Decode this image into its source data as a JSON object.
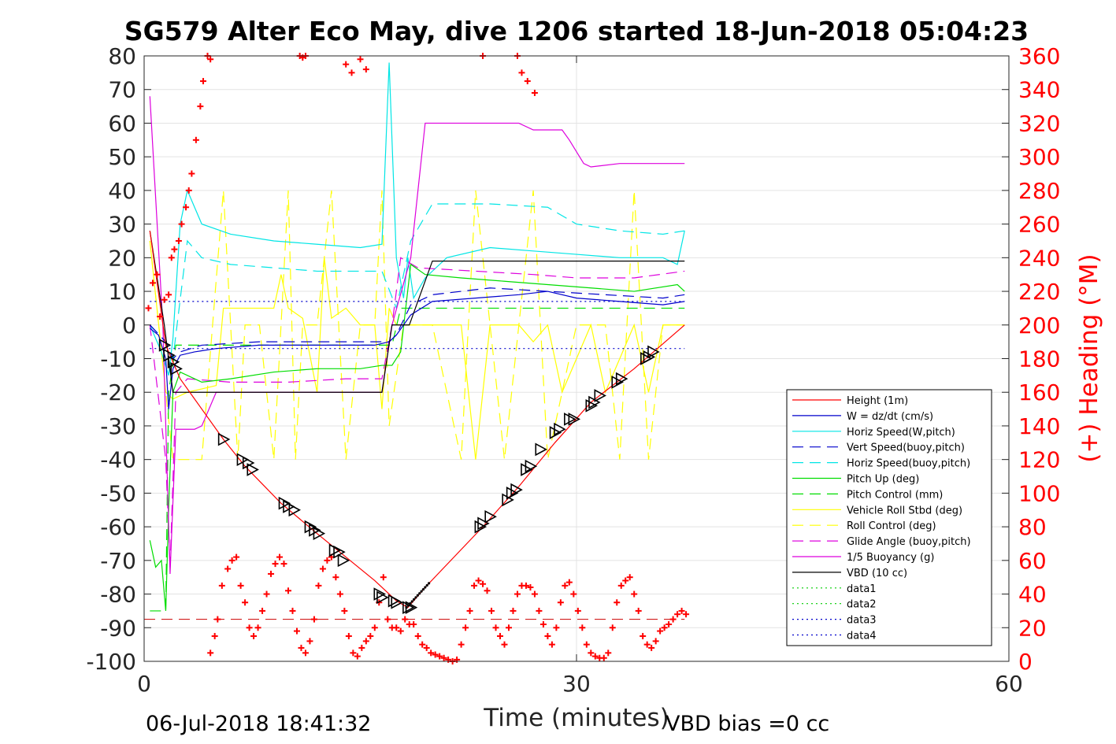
{
  "chart_data": {
    "type": "line",
    "title": "SG579 Alter Eco May, dive 1206 started 18-Jun-2018 05:04:23",
    "xlabel": "Time (minutes)",
    "ylabel": "",
    "y2label": "(+) Heading (°M)",
    "xlim": [
      0,
      60
    ],
    "ylim": [
      -100,
      80
    ],
    "y2lim": [
      0,
      360
    ],
    "x_ticks": [
      0,
      30,
      60
    ],
    "y_ticks": [
      -100,
      -90,
      -80,
      -70,
      -60,
      -50,
      -40,
      -30,
      -20,
      -10,
      0,
      10,
      20,
      30,
      40,
      50,
      60,
      70,
      80
    ],
    "y2_ticks": [
      0,
      20,
      40,
      60,
      80,
      100,
      120,
      140,
      160,
      180,
      200,
      220,
      240,
      260,
      280,
      300,
      320,
      340,
      360
    ],
    "grid": true,
    "legend_position": "right",
    "footer_left": "06-Jul-2018 18:41:32",
    "footer_right": "VBD bias =0 cc",
    "series": [
      {
        "name": "Height (1m)",
        "color": "#ff0000",
        "style": "solid",
        "x": [
          0.4,
          1.5,
          2.5,
          5.5,
          7,
          9.5,
          12,
          14,
          16,
          17.5,
          18.3,
          19.5,
          23.5,
          26,
          28.5,
          31,
          34,
          37.5
        ],
        "y": [
          28,
          -6,
          -16,
          -34,
          -42,
          -53,
          -62,
          -69,
          -76,
          -82,
          -84,
          -78,
          -60,
          -48,
          -35,
          -23,
          -13,
          0
        ]
      },
      {
        "name": "W = dz/dt (cm/s)",
        "color": "#0000cc",
        "style": "solid",
        "x": [
          0.4,
          1,
          1.5,
          1.7,
          2,
          2.5,
          3.5,
          5,
          8,
          12,
          16,
          17,
          17.5,
          18.5,
          20,
          23,
          26,
          28,
          30,
          33,
          36,
          37.5
        ],
        "y": [
          -1,
          -3,
          -10,
          -25,
          -13,
          -9,
          -8,
          -7,
          -6,
          -6,
          -6,
          -5,
          -3,
          3,
          7,
          8,
          9,
          10,
          8,
          7,
          6,
          7
        ]
      },
      {
        "name": "Horiz Speed(W,pitch)",
        "color": "#00e5e5",
        "style": "solid",
        "x": [
          0.4,
          1.2,
          1.7,
          2,
          2.5,
          3,
          4,
          6,
          9,
          12,
          15,
          16.5,
          17,
          17.5,
          18,
          18.3,
          18.7,
          19.5,
          21,
          24,
          27,
          30,
          33,
          36,
          37,
          37.5
        ],
        "y": [
          0,
          -8,
          -15,
          -4,
          30,
          40,
          30,
          27,
          25,
          24,
          23,
          24,
          78,
          20,
          8,
          20,
          8,
          14,
          20,
          23,
          22,
          21,
          20,
          20,
          18,
          28
        ]
      },
      {
        "name": "Vert Speed(buoy,pitch)",
        "color": "#0000cc",
        "style": "dashed",
        "x": [
          0.4,
          1.5,
          2,
          2.5,
          4,
          8,
          12,
          16,
          17,
          17.5,
          18.5,
          20,
          24,
          28,
          32,
          36,
          37.5
        ],
        "y": [
          0,
          -5,
          -10,
          -8,
          -6,
          -5,
          -5,
          -5,
          -5,
          -3,
          6,
          9,
          11,
          10,
          9,
          8,
          9
        ]
      },
      {
        "name": "Horiz Speed(buoy,pitch)",
        "color": "#00e5e5",
        "style": "dashed",
        "x": [
          0.4,
          1.5,
          2,
          3,
          4,
          6,
          9,
          12,
          15,
          16.5,
          17.5,
          18.5,
          20,
          24,
          28,
          30,
          33,
          36,
          37.5
        ],
        "y": [
          0,
          -5,
          -10,
          25,
          20,
          18,
          17,
          16,
          16,
          16,
          5,
          25,
          36,
          36,
          35,
          30,
          28,
          27,
          28
        ]
      },
      {
        "name": "Pitch Up (deg)",
        "color": "#00dd00",
        "style": "solid",
        "x": [
          0.4,
          0.8,
          1.2,
          1.5,
          1.7,
          2,
          2.5,
          4,
          6,
          9,
          12,
          15,
          16.5,
          17.2,
          17.8,
          18.5,
          19.5,
          22,
          25,
          28,
          31,
          34,
          37,
          37.5
        ],
        "y": [
          -64,
          -72,
          -70,
          -85,
          -55,
          -20,
          -14,
          -17,
          -16,
          -14,
          -13,
          -13,
          -12,
          -12,
          -8,
          18,
          15,
          14,
          13,
          12,
          11,
          10,
          12,
          10
        ]
      },
      {
        "name": "Pitch Control (mm)",
        "color": "#00dd00",
        "style": "dashed",
        "x": [
          0.4,
          1.2,
          1.5,
          1.7,
          2.2,
          5,
          10,
          16.5,
          17.2,
          17.8,
          18.2,
          24,
          30,
          37.5
        ],
        "y": [
          -85,
          -85,
          -85,
          -20,
          -6,
          -6,
          -6,
          -6,
          -6,
          5,
          5,
          5,
          5,
          5
        ]
      },
      {
        "name": "Vehicle Roll Stbd (deg)",
        "color": "#ffff00",
        "style": "solid",
        "x": [
          0.4,
          1.5,
          2,
          3,
          5,
          5.5,
          6,
          7,
          8,
          9,
          9.5,
          10,
          11,
          12,
          12.5,
          13,
          14,
          15,
          16,
          16.5,
          17,
          17.5,
          18,
          19,
          20,
          22,
          23,
          24,
          26,
          27,
          28,
          29,
          30,
          31,
          32,
          34,
          35,
          36,
          37.5
        ],
        "y": [
          25,
          -20,
          -22,
          -20,
          -18,
          5,
          5,
          5,
          5,
          5,
          15,
          5,
          2,
          -20,
          20,
          2,
          5,
          0,
          0,
          -25,
          5,
          0,
          0,
          0,
          0,
          0,
          -40,
          0,
          0,
          -5,
          0,
          -20,
          -10,
          0,
          -20,
          0,
          -20,
          0,
          0
        ]
      },
      {
        "name": "Roll Control (deg)",
        "color": "#ffff00",
        "style": "dashed",
        "x": [
          0.4,
          1.5,
          2,
          4,
          5.5,
          6.5,
          7,
          8,
          9,
          10,
          10.5,
          11,
          12,
          13,
          14,
          15,
          16,
          16.5,
          17,
          18,
          20,
          22,
          23,
          25,
          26,
          27,
          28,
          30,
          32,
          33,
          34,
          35,
          36,
          37.5
        ],
        "y": [
          25,
          -20,
          -40,
          -40,
          40,
          -40,
          0,
          0,
          -40,
          40,
          -40,
          0,
          0,
          40,
          -40,
          0,
          0,
          40,
          -30,
          0,
          0,
          -40,
          40,
          -40,
          0,
          40,
          -40,
          0,
          0,
          -40,
          40,
          -40,
          0,
          0
        ]
      },
      {
        "name": "Glide Angle (buoy,pitch)",
        "color": "#dd00dd",
        "style": "dashed",
        "x": [
          0.4,
          1.5,
          1.8,
          2.2,
          3,
          6,
          10,
          14,
          16.5,
          17.2,
          17.8,
          19,
          23,
          27,
          30,
          34,
          37.5
        ],
        "y": [
          0,
          -40,
          -72,
          -20,
          -16,
          -17,
          -17,
          -16,
          -16,
          0,
          20,
          17,
          16,
          15,
          14,
          14,
          16
        ]
      },
      {
        "name": "1/5 Buoyancy (g)",
        "color": "#dd00dd",
        "style": "solid",
        "x": [
          0.4,
          1.3,
          1.8,
          2.2,
          3.5,
          4,
          4.5,
          5,
          6,
          10,
          16.5,
          17.2,
          18.5,
          19.5,
          21,
          24,
          26,
          27,
          29,
          29.5,
          30.5,
          31,
          33,
          35,
          37.5
        ],
        "y": [
          68,
          0,
          -74,
          -31,
          -31,
          -30,
          -25,
          -20,
          -20,
          -20,
          -20,
          0,
          20,
          60,
          60,
          60,
          60,
          58,
          58,
          55,
          48,
          47,
          48,
          48,
          48
        ]
      },
      {
        "name": "VBD (10 cc)",
        "color": "#000000",
        "style": "solid",
        "x": [
          0.4,
          1.4,
          1.7,
          2,
          8,
          16.5,
          17.2,
          18.4,
          20,
          26,
          32,
          37.5
        ],
        "y": [
          28,
          0,
          -10,
          -20,
          -20,
          -20,
          0,
          0,
          19,
          19,
          19,
          19
        ]
      },
      {
        "name": "data1",
        "color": "#00cc00",
        "style": "dotted",
        "x": [],
        "y": []
      },
      {
        "name": "data2",
        "color": "#00cc00",
        "style": "dotted",
        "x": [],
        "y": []
      },
      {
        "name": "data3",
        "color": "#0000cc",
        "style": "dotted",
        "x": [
          0.4,
          37.5
        ],
        "y": [
          7,
          7
        ]
      },
      {
        "name": "data4",
        "color": "#0000cc",
        "style": "dotted",
        "x": [
          0.4,
          37.5
        ],
        "y": [
          -7,
          -7
        ]
      }
    ],
    "reference_line": {
      "color": "#cc0000",
      "style": "dashed",
      "x": [
        0,
        37.5
      ],
      "y": [
        -87.5,
        -87.5
      ]
    },
    "heading_points": {
      "axis": "right",
      "color": "#ff0000",
      "marker": "+",
      "x": [
        0.3,
        0.6,
        0.9,
        1.1,
        1.4,
        1.7,
        1.9,
        2.1,
        2.4,
        2.6,
        2.9,
        3.1,
        3.3,
        3.6,
        3.9,
        4.1,
        4.4,
        4.6,
        4.9,
        5.1,
        5.4,
        5.8,
        6.1,
        6.4,
        6.7,
        7.0,
        7.3,
        7.6,
        7.9,
        8.2,
        8.5,
        8.8,
        9.1,
        9.4,
        9.7,
        10.0,
        10.3,
        10.6,
        10.9,
        11.2,
        11.5,
        11.8,
        12.1,
        12.4,
        12.7,
        13.0,
        13.3,
        13.6,
        13.9,
        14.2,
        14.5,
        14.8,
        15.1,
        15.4,
        15.7,
        16.0,
        16.3,
        16.6,
        16.9,
        17.2,
        17.5,
        17.8,
        18.1,
        18.4,
        18.7,
        19.0,
        19.3,
        19.6,
        19.9,
        20.2,
        20.5,
        20.8,
        21.1,
        21.4,
        21.7,
        22.0,
        22.3,
        22.6,
        22.9,
        23.2,
        23.5,
        23.8,
        24.1,
        24.4,
        24.7,
        25.0,
        25.3,
        25.6,
        25.9,
        26.2,
        26.5,
        26.8,
        27.1,
        27.4,
        27.7,
        28.0,
        28.3,
        28.6,
        28.9,
        29.2,
        29.5,
        29.8,
        30.1,
        30.4,
        30.7,
        31.0,
        31.3,
        31.6,
        31.9,
        32.2,
        32.5,
        32.8,
        33.1,
        33.4,
        33.7,
        34.0,
        34.3,
        34.6,
        34.9,
        35.2,
        35.5,
        35.8,
        36.1,
        36.4,
        36.7,
        37.0,
        37.3,
        37.6
      ],
      "y": [
        210,
        225,
        230,
        205,
        215,
        218,
        240,
        245,
        250,
        260,
        270,
        280,
        290,
        310,
        330,
        345,
        360,
        5,
        15,
        25,
        45,
        55,
        60,
        62,
        45,
        35,
        20,
        15,
        20,
        30,
        40,
        52,
        58,
        62,
        58,
        42,
        30,
        18,
        8,
        5,
        12,
        25,
        45,
        55,
        60,
        62,
        50,
        40,
        30,
        15,
        5,
        3,
        8,
        12,
        15,
        20,
        35,
        50,
        25,
        20,
        20,
        18,
        25,
        22,
        22,
        15,
        10,
        8,
        5,
        4,
        3,
        2,
        1,
        0,
        1,
        10,
        20,
        30,
        45,
        48,
        46,
        42,
        30,
        20,
        15,
        10,
        20,
        30,
        40,
        45,
        45,
        44,
        40,
        30,
        22,
        15,
        10,
        20,
        35,
        45,
        47,
        40,
        30,
        20,
        10,
        5,
        3,
        2,
        2,
        5,
        20,
        35,
        45,
        48,
        50,
        40,
        30,
        15,
        10,
        8,
        12,
        18,
        20,
        22,
        25,
        28,
        30,
        28
      ],
      "top_cluster_x": [
        4.6,
        10.8,
        11.0,
        11.2,
        14.0,
        14.4,
        15.0,
        15.4,
        23.5,
        25.9,
        26.2,
        26.6,
        27.1
      ],
      "top_cluster_y": [
        358,
        360,
        359,
        360,
        355,
        350,
        358,
        352,
        360,
        360,
        350,
        345,
        338
      ]
    },
    "triangle_markers": {
      "color": "#000000",
      "marker": "triangle-right",
      "x": [
        1.4,
        1.7,
        2.0,
        2.2,
        5.5,
        6.8,
        7.2,
        7.5,
        9.7,
        10.0,
        10.4,
        11.5,
        11.8,
        12.1,
        13.2,
        13.5,
        13.8,
        16.3,
        16.5,
        17.3,
        17.5,
        18.3,
        18.5,
        23.3,
        23.5,
        24.0,
        25.2,
        25.5,
        25.8,
        26.5,
        26.8,
        27.5,
        28.5,
        28.8,
        29.5,
        29.8,
        31.0,
        31.2,
        31.6,
        32.8,
        33.1,
        34.8,
        35.0,
        35.3
      ],
      "y": [
        -6,
        -9,
        -11,
        -13,
        -34,
        -40,
        -41,
        -43,
        -53,
        -54,
        -55,
        -60,
        -61,
        -62,
        -67,
        -67.5,
        -70,
        -80,
        -81,
        -82,
        -82.5,
        -84,
        -84,
        -60,
        -59,
        -57,
        -52,
        -50,
        -49,
        -43,
        -42,
        -37,
        -32,
        -31,
        -28,
        -28,
        -24,
        -23,
        -21,
        -17,
        -16,
        -10,
        -9.5,
        -8
      ]
    }
  }
}
